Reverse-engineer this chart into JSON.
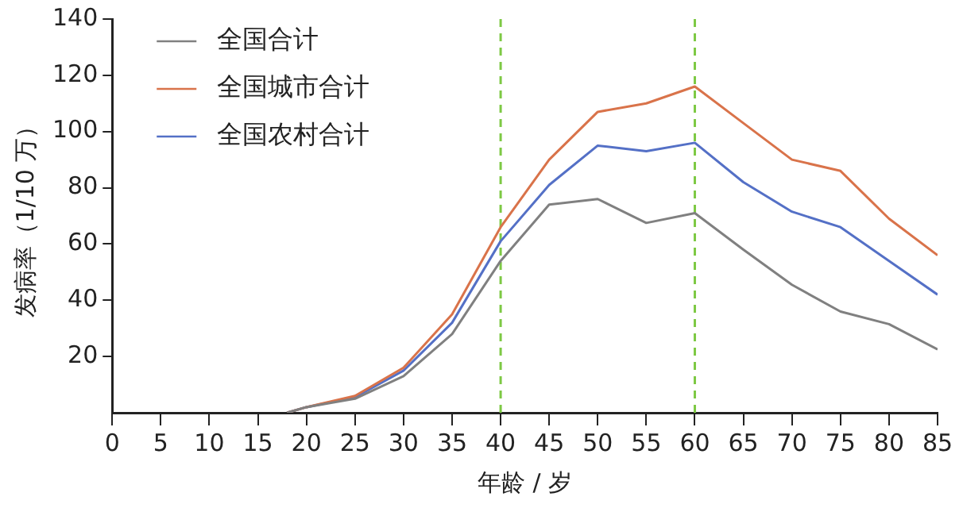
{
  "chart_data": {
    "type": "line",
    "xlabel": "年龄 / 岁",
    "ylabel": "发病率（1/10 万）",
    "x": [
      18,
      20,
      25,
      30,
      35,
      40,
      45,
      50,
      55,
      60,
      65,
      70,
      75,
      80,
      85
    ],
    "series": [
      {
        "name": "全国合计",
        "color": "#808080",
        "values": [
          0,
          2,
          5,
          13,
          28,
          54,
          74,
          76,
          67.5,
          71,
          58,
          45.5,
          36,
          31.5,
          22.5
        ]
      },
      {
        "name": "全国城市合计",
        "color": "#d9734a",
        "values": [
          0,
          2,
          6,
          16,
          35,
          66,
          90,
          107,
          110,
          116,
          103,
          90,
          86,
          69,
          56
        ]
      },
      {
        "name": "全国农村合计",
        "color": "#5470c6",
        "values": [
          0,
          2,
          5.5,
          15,
          32,
          61,
          81,
          95,
          93,
          96,
          82,
          71.5,
          66,
          54,
          42
        ]
      }
    ],
    "xlim": [
      0,
      85
    ],
    "xticks": [
      0,
      5,
      10,
      15,
      20,
      25,
      30,
      35,
      40,
      45,
      50,
      55,
      60,
      65,
      70,
      75,
      80,
      85
    ],
    "ylim": [
      0,
      140
    ],
    "yticks": [
      20,
      40,
      60,
      80,
      100,
      120,
      140
    ],
    "ref_lines": [
      {
        "axis": "x",
        "value": 40,
        "color": "#7dc944",
        "line_style": "dashed"
      },
      {
        "axis": "x",
        "value": 60,
        "color": "#7dc944",
        "line_style": "dashed"
      }
    ],
    "grid": false,
    "legend": "top left",
    "marker": "none",
    "line_style": "solid"
  }
}
